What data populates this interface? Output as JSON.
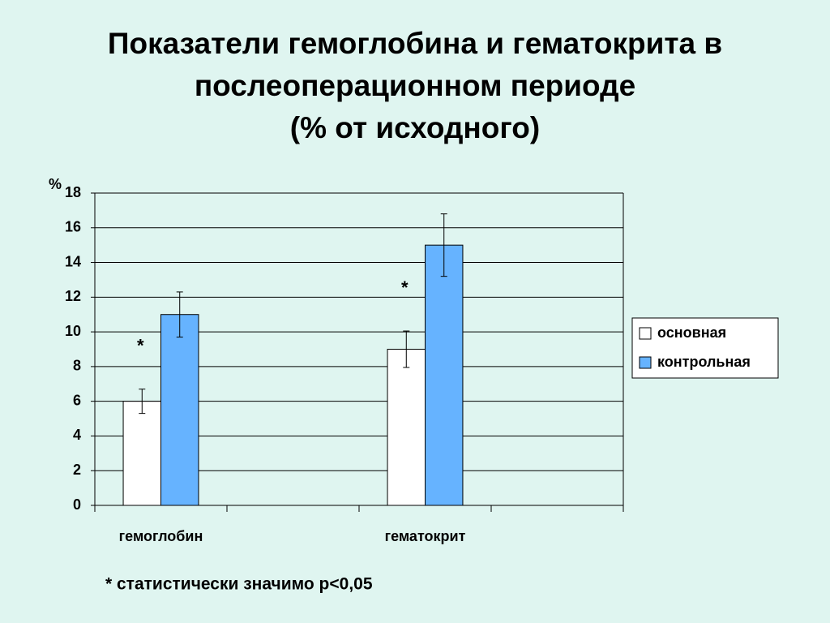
{
  "chart_data": {
    "type": "bar",
    "title_lines": [
      "Показатели гемоглобина и гематокрита в",
      "послеоперационном периоде",
      "(% от исходного)"
    ],
    "y_label": "%",
    "categories": [
      "гемоглобин",
      null,
      "гематокрит",
      null
    ],
    "series": [
      {
        "name": "основная",
        "color": "#ffffff",
        "values": [
          6,
          null,
          9,
          null
        ],
        "errors": [
          0.7,
          null,
          1.05,
          null
        ],
        "notes": [
          "*",
          null,
          "*",
          null
        ]
      },
      {
        "name": "контрольная",
        "color": "#66b3ff",
        "values": [
          11,
          null,
          15,
          null
        ],
        "errors": [
          1.3,
          null,
          1.8,
          null
        ]
      }
    ],
    "ylim": [
      0,
      18
    ],
    "yticks": [
      0,
      2,
      4,
      6,
      8,
      10,
      12,
      14,
      16,
      18
    ],
    "grid": true,
    "legend": "right",
    "footnote": "* статистически значимо p<0,05"
  }
}
